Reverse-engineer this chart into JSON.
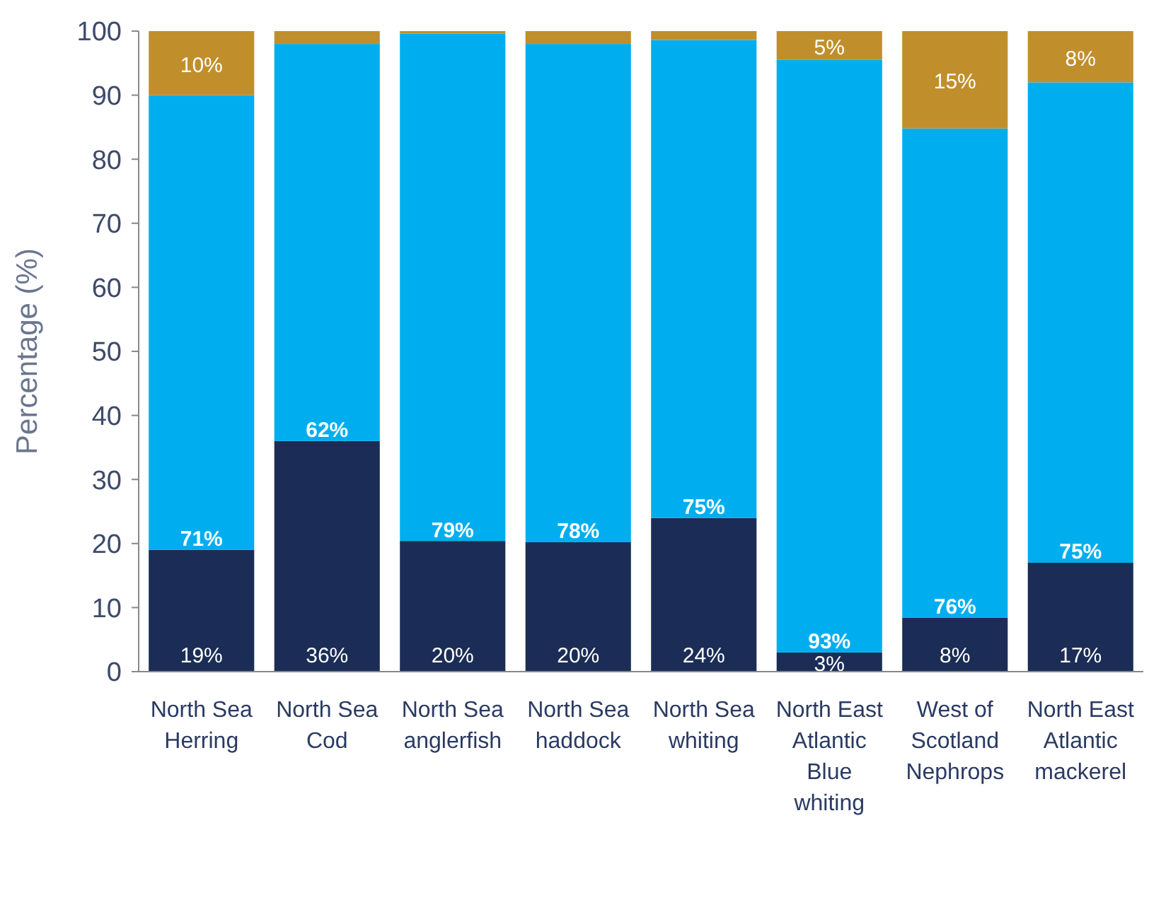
{
  "chart_data": {
    "type": "bar",
    "stacked": true,
    "ylabel": "Percentage (%)",
    "categories": [
      "North Sea Herring",
      "North Sea Cod",
      "North Sea anglerfish",
      "North Sea haddock",
      "North Sea whiting",
      "North East Atlantic Blue whiting",
      "West of Scotland Nephrops",
      "North East Atlantic mackerel"
    ],
    "series": [
      {
        "color": "#1b2d56",
        "values": [
          19,
          36,
          20.4,
          20.2,
          24,
          3,
          8.4,
          17
        ],
        "value_labels": [
          "19%",
          "36%",
          "20%",
          "20%",
          "24%",
          "3%",
          "8%",
          "17%"
        ]
      },
      {
        "color": "#00aeef",
        "values": [
          71,
          62,
          79.2,
          77.8,
          74.6,
          92.5,
          76.4,
          75
        ],
        "value_labels": [
          "71%",
          "62%",
          "79%",
          "78%",
          "75%",
          "93%",
          "76%",
          "75%"
        ]
      },
      {
        "color": "#c08f2c",
        "values": [
          10,
          2,
          0.4,
          2,
          1.4,
          4.5,
          15.2,
          8
        ],
        "value_labels": [
          "10%",
          null,
          null,
          null,
          null,
          "5%",
          "15%",
          "8%"
        ]
      }
    ],
    "ylim": [
      0,
      100
    ],
    "yticks": [
      0,
      10,
      20,
      30,
      40,
      50,
      60,
      70,
      80,
      90,
      100
    ],
    "grid": false
  }
}
